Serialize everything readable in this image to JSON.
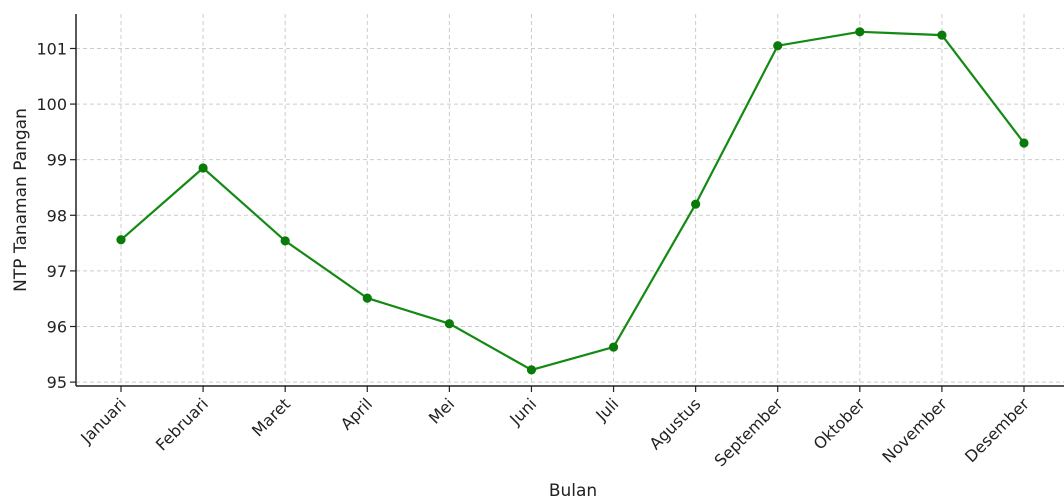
{
  "chart_data": {
    "type": "line",
    "title": "",
    "xlabel": "Bulan",
    "ylabel": "NTP Tanaman Pangan",
    "categories": [
      "Januari",
      "Februari",
      "Maret",
      "April",
      "Mei",
      "Juni",
      "Juli",
      "Agustus",
      "September",
      "Oktober",
      "November",
      "Desember"
    ],
    "series": [
      {
        "values": [
          97.56,
          98.85,
          97.54,
          96.51,
          96.05,
          95.22,
          95.63,
          98.2,
          101.05,
          101.3,
          101.24,
          99.3
        ]
      }
    ],
    "yticks": [
      95,
      96,
      97,
      98,
      99,
      100,
      101
    ],
    "ylim": [
      94.93,
      101.62
    ],
    "grid": true,
    "colors": {
      "line": "#138a13",
      "marker": "#0a7a0a"
    }
  }
}
